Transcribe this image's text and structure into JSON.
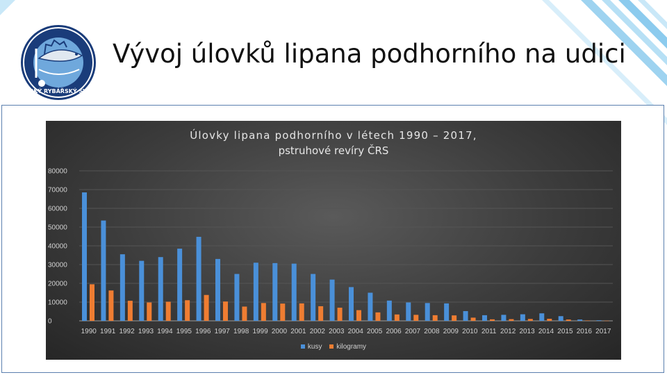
{
  "slide": {
    "title": "Vývoj úlovků lipana podhorního na udici",
    "logo_text": "ČESKÝ RYBÁŘSKÝ SVAZ"
  },
  "colors": {
    "series_kusy": "#4a90d9",
    "series_kg": "#ef7d32",
    "frame": "#5a7fae",
    "stripe": "#9ed3f0"
  },
  "chart_data": {
    "type": "bar",
    "title_line1": "Úlovky lipana podhorního v létech 1990 – 2017,",
    "title_line2": "pstruhové revíry ČRS",
    "categories": [
      "1990",
      "1991",
      "1992",
      "1993",
      "1994",
      "1995",
      "1996",
      "1997",
      "1998",
      "1999",
      "2000",
      "2001",
      "2002",
      "2003",
      "2004",
      "2005",
      "2006",
      "2007",
      "2008",
      "2009",
      "2010",
      "2011",
      "2012",
      "2013",
      "2014",
      "2015",
      "2016",
      "2017"
    ],
    "series": [
      {
        "name": "kusy",
        "values": [
          68500,
          53500,
          35500,
          32000,
          34000,
          38500,
          44800,
          33000,
          25000,
          31000,
          30800,
          30500,
          25000,
          22000,
          18000,
          15000,
          10800,
          9800,
          9500,
          9300,
          5200,
          3000,
          3200,
          3500,
          4000,
          2500,
          700,
          300
        ]
      },
      {
        "name": "kilogramy",
        "values": [
          19500,
          16200,
          10700,
          9800,
          10200,
          11000,
          13800,
          10300,
          7600,
          9500,
          9200,
          9300,
          7800,
          7000,
          5700,
          4500,
          3400,
          3200,
          3000,
          2900,
          1700,
          800,
          900,
          1000,
          1100,
          700,
          200,
          80
        ]
      }
    ],
    "yticks": [
      0,
      10000,
      20000,
      30000,
      40000,
      50000,
      60000,
      70000,
      80000
    ],
    "ylim": [
      0,
      80000
    ],
    "grid": true,
    "legend_position": "bottom"
  }
}
